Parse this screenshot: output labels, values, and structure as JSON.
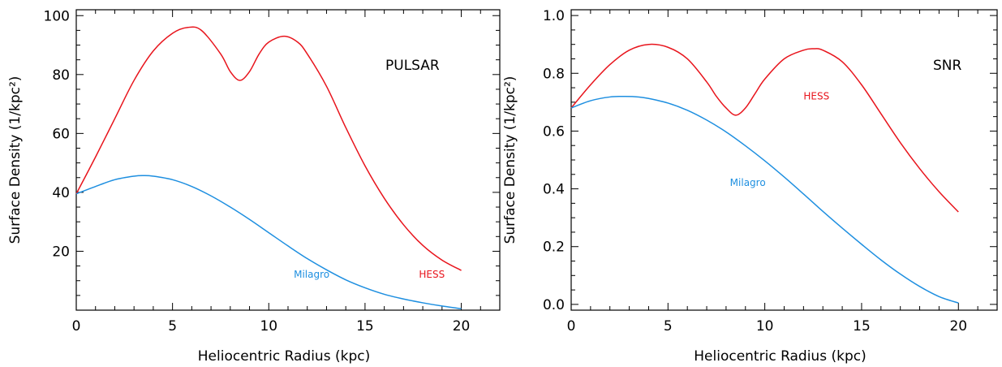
{
  "chart_data": [
    {
      "type": "line",
      "panel_label": "PULSAR",
      "xlabel": "Heliocentric Radius (kpc)",
      "ylabel": "Surface Density (1/kpc²)",
      "xlim": [
        0,
        22
      ],
      "ylim": [
        0,
        102
      ],
      "x_ticks": [
        0,
        5,
        10,
        15,
        20
      ],
      "y_ticks": [
        20,
        40,
        60,
        80,
        100
      ],
      "y_tick_labels": [
        "20",
        "40",
        "60",
        "80",
        "100"
      ],
      "grid": false,
      "series": [
        {
          "name": "HESS",
          "color": "#e8141c",
          "label_at": [
            17.8,
            11
          ],
          "x": [
            0,
            1,
            2,
            3,
            4,
            5,
            5.8,
            6.5,
            7.5,
            8,
            8.5,
            9,
            9.5,
            10,
            10.8,
            11.5,
            12,
            13,
            14,
            15,
            16,
            17,
            18,
            19,
            20
          ],
          "y": [
            39.5,
            52,
            65,
            78,
            88,
            94,
            96,
            95,
            87,
            81,
            78,
            81,
            87,
            91,
            93,
            91,
            87,
            76,
            62,
            49,
            38,
            29,
            22,
            17,
            13.5
          ]
        },
        {
          "name": "Milagro",
          "color": "#1e8fe0",
          "label_at": [
            11.3,
            11
          ],
          "x": [
            0,
            1,
            2,
            3,
            3.5,
            4,
            5,
            6,
            7,
            8,
            9,
            10,
            11,
            12,
            13,
            14,
            15,
            16,
            17,
            18,
            19,
            20
          ],
          "y": [
            39.5,
            42,
            44.3,
            45.5,
            45.7,
            45.5,
            44.3,
            42,
            38.8,
            35,
            30.8,
            26.3,
            21.8,
            17.5,
            13.7,
            10.3,
            7.6,
            5.4,
            3.8,
            2.5,
            1.4,
            0.5
          ]
        }
      ]
    },
    {
      "type": "line",
      "panel_label": "SNR",
      "xlabel": "Heliocentric Radius (kpc)",
      "ylabel": "Surface Density (1/kpc²)",
      "xlim": [
        0,
        22
      ],
      "ylim": [
        -0.02,
        1.02
      ],
      "x_ticks": [
        0,
        5,
        10,
        15,
        20
      ],
      "y_ticks": [
        0.0,
        0.2,
        0.4,
        0.6,
        0.8,
        1.0
      ],
      "y_tick_labels": [
        "0.0",
        "0.2",
        "0.4",
        "0.6",
        "0.8",
        "1.0"
      ],
      "grid": false,
      "series": [
        {
          "name": "HESS",
          "color": "#e8141c",
          "label_at": [
            12.0,
            0.71
          ],
          "x": [
            0,
            1,
            2,
            3,
            4,
            5,
            6,
            7,
            7.5,
            8,
            8.5,
            9,
            9.5,
            10,
            11,
            12,
            12.5,
            13,
            14,
            15,
            16,
            17,
            18,
            19,
            20
          ],
          "y": [
            0.68,
            0.76,
            0.83,
            0.88,
            0.9,
            0.89,
            0.85,
            0.77,
            0.72,
            0.68,
            0.655,
            0.68,
            0.73,
            0.78,
            0.85,
            0.88,
            0.885,
            0.88,
            0.84,
            0.76,
            0.66,
            0.56,
            0.47,
            0.39,
            0.32
          ]
        },
        {
          "name": "Milagro",
          "color": "#1e8fe0",
          "label_at": [
            8.2,
            0.41
          ],
          "x": [
            0,
            1,
            2,
            2.8,
            3.5,
            4,
            5,
            6,
            7,
            8,
            9,
            10,
            11,
            12,
            13,
            14,
            15,
            16,
            17,
            18,
            19,
            20
          ],
          "y": [
            0.68,
            0.705,
            0.718,
            0.72,
            0.718,
            0.713,
            0.697,
            0.672,
            0.638,
            0.597,
            0.549,
            0.497,
            0.441,
            0.382,
            0.322,
            0.264,
            0.208,
            0.154,
            0.105,
            0.062,
            0.027,
            0.005
          ]
        }
      ]
    }
  ]
}
